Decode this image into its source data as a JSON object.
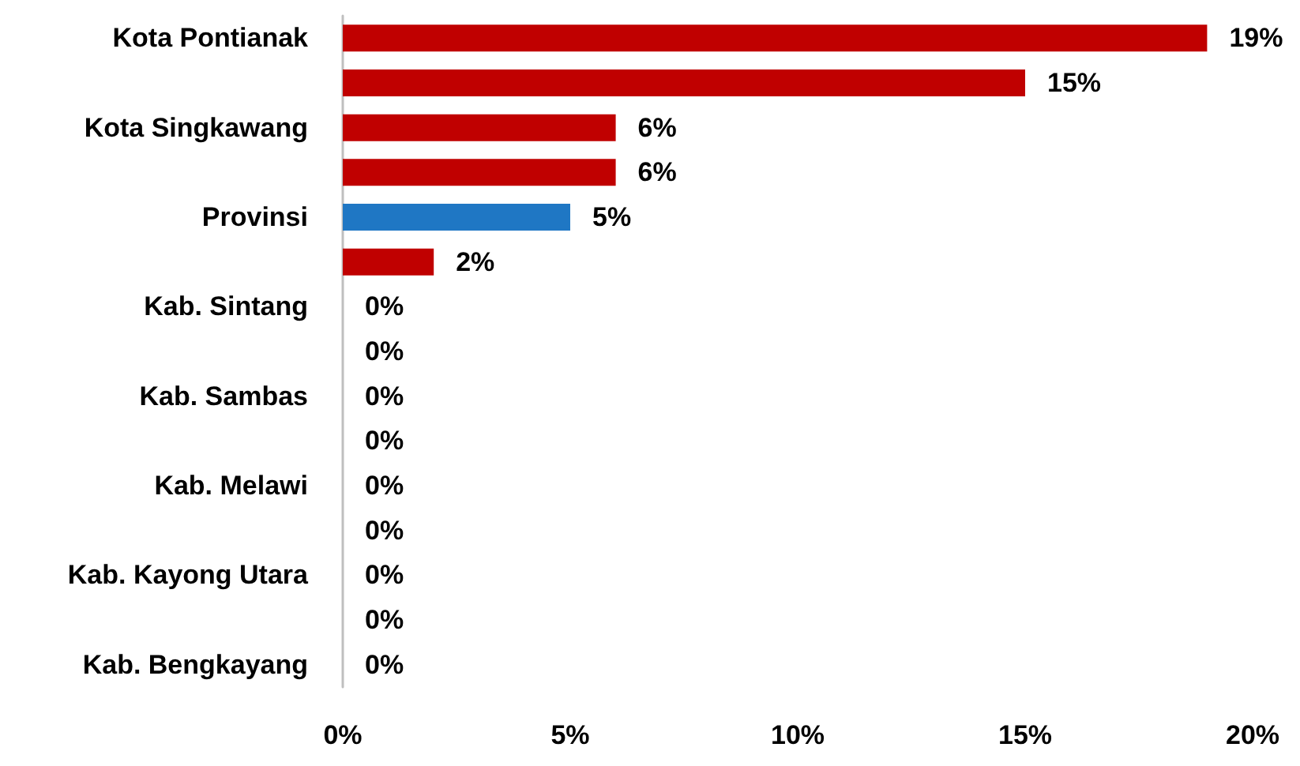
{
  "chart_data": {
    "type": "bar",
    "orientation": "horizontal",
    "categories": [
      "Kota Pontianak",
      null,
      "Kota Singkawang",
      null,
      "Provinsi",
      null,
      "Kab. Sintang",
      null,
      "Kab. Sambas",
      null,
      "Kab. Melawi",
      null,
      "Kab. Kayong Utara",
      null,
      "Kab. Bengkayang"
    ],
    "values": [
      19,
      15,
      6,
      6,
      5,
      2,
      0,
      0,
      0,
      0,
      0,
      0,
      0,
      0,
      0
    ],
    "colors": [
      "#c00000",
      "#c00000",
      "#c00000",
      "#c00000",
      "#1f77c4",
      "#c00000",
      "#c00000",
      "#c00000",
      "#c00000",
      "#c00000",
      "#c00000",
      "#c00000",
      "#c00000",
      "#c00000",
      "#c00000"
    ],
    "value_labels": [
      "19%",
      "15%",
      "6%",
      "6%",
      "5%",
      "2%",
      "0%",
      "0%",
      "0%",
      "0%",
      "0%",
      "0%",
      "0%",
      "0%",
      "0%"
    ],
    "xlim": [
      0,
      20
    ],
    "xticks": [
      {
        "value": 0,
        "label": "0%"
      },
      {
        "value": 5,
        "label": "5%"
      },
      {
        "value": 10,
        "label": "10%"
      },
      {
        "value": 15,
        "label": "15%"
      },
      {
        "value": 20,
        "label": "20%"
      }
    ],
    "grid": false
  }
}
